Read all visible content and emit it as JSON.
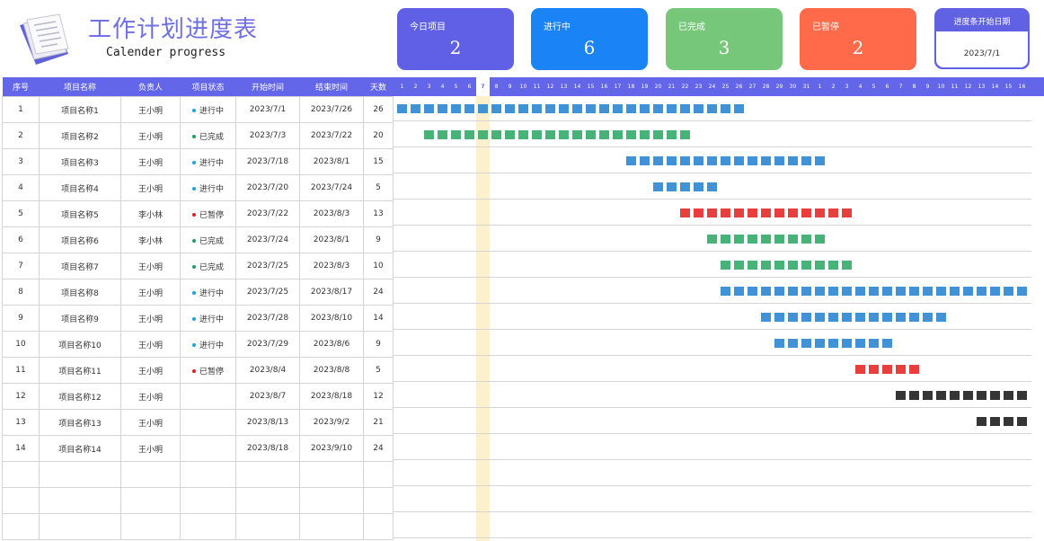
{
  "header": {
    "title": "工作计划进度表",
    "subtitle": "Calender progress",
    "logo_icon": "document-stack-icon"
  },
  "cards": [
    {
      "label": "今日项目",
      "value": "2",
      "color": "#6060e6"
    },
    {
      "label": "进行中",
      "value": "6",
      "color": "#1a83f5"
    },
    {
      "label": "已完成",
      "value": "3",
      "color": "#77c77a"
    },
    {
      "label": "已暂停",
      "value": "2",
      "color": "#ff6b4a"
    }
  ],
  "start_date": {
    "label": "进度条开始日期",
    "value": "2023/7/1"
  },
  "table": {
    "columns": [
      "序号",
      "项目名称",
      "负责人",
      "项目状态",
      "开始时间",
      "结束时间",
      "天数"
    ],
    "rows": [
      {
        "no": "1",
        "name": "项目名称1",
        "owner": "王小明",
        "status": "进行中",
        "start": "2023/7/1",
        "end": "2023/7/26",
        "days": "26"
      },
      {
        "no": "2",
        "name": "项目名称2",
        "owner": "王小明",
        "status": "已完成",
        "start": "2023/7/3",
        "end": "2023/7/22",
        "days": "20"
      },
      {
        "no": "3",
        "name": "项目名称3",
        "owner": "王小明",
        "status": "进行中",
        "start": "2023/7/18",
        "end": "2023/8/1",
        "days": "15"
      },
      {
        "no": "4",
        "name": "项目名称4",
        "owner": "王小明",
        "status": "进行中",
        "start": "2023/7/20",
        "end": "2023/7/24",
        "days": "5"
      },
      {
        "no": "5",
        "name": "项目名称5",
        "owner": "李小林",
        "status": "已暂停",
        "start": "2023/7/22",
        "end": "2023/8/3",
        "days": "13"
      },
      {
        "no": "6",
        "name": "项目名称6",
        "owner": "李小林",
        "status": "已完成",
        "start": "2023/7/24",
        "end": "2023/8/1",
        "days": "9"
      },
      {
        "no": "7",
        "name": "项目名称7",
        "owner": "王小明",
        "status": "已完成",
        "start": "2023/7/25",
        "end": "2023/8/3",
        "days": "10"
      },
      {
        "no": "8",
        "name": "项目名称8",
        "owner": "王小明",
        "status": "进行中",
        "start": "2023/7/25",
        "end": "2023/8/17",
        "days": "24"
      },
      {
        "no": "9",
        "name": "项目名称9",
        "owner": "王小明",
        "status": "进行中",
        "start": "2023/7/28",
        "end": "2023/8/10",
        "days": "14"
      },
      {
        "no": "10",
        "name": "项目名称10",
        "owner": "王小明",
        "status": "进行中",
        "start": "2023/7/29",
        "end": "2023/8/6",
        "days": "9"
      },
      {
        "no": "11",
        "name": "项目名称11",
        "owner": "王小明",
        "status": "已暂停",
        "start": "2023/8/4",
        "end": "2023/8/8",
        "days": "5"
      },
      {
        "no": "12",
        "name": "项目名称12",
        "owner": "王小明",
        "status": "",
        "start": "2023/8/7",
        "end": "2023/8/18",
        "days": "12"
      },
      {
        "no": "13",
        "name": "项目名称13",
        "owner": "王小明",
        "status": "",
        "start": "2023/8/13",
        "end": "2023/9/2",
        "days": "21"
      },
      {
        "no": "14",
        "name": "项目名称14",
        "owner": "王小明",
        "status": "",
        "start": "2023/8/18",
        "end": "2023/9/10",
        "days": "24"
      }
    ],
    "empty_rows": 3
  },
  "status_colors": {
    "进行中": "#19a7d8",
    "已完成": "#1fa05c",
    "已暂停": "#e02020",
    "none": "#111111"
  },
  "bar_colors": {
    "进行中": "#1f7fd0",
    "已完成": "#27a660",
    "已暂停": "#e41c1c",
    "none": "#111111"
  },
  "gantt": {
    "day_labels": [
      "1",
      "2",
      "3",
      "4",
      "5",
      "6",
      "7",
      "8",
      "9",
      "10",
      "11",
      "12",
      "13",
      "14",
      "15",
      "16",
      "17",
      "18",
      "19",
      "20",
      "21",
      "22",
      "23",
      "24",
      "25",
      "26",
      "27",
      "28",
      "29",
      "30",
      "31",
      "1",
      "2",
      "3",
      "4",
      "5",
      "6",
      "7",
      "8",
      "9",
      "10",
      "11",
      "12",
      "13",
      "14",
      "15",
      "16"
    ],
    "today_label": "7"
  }
}
